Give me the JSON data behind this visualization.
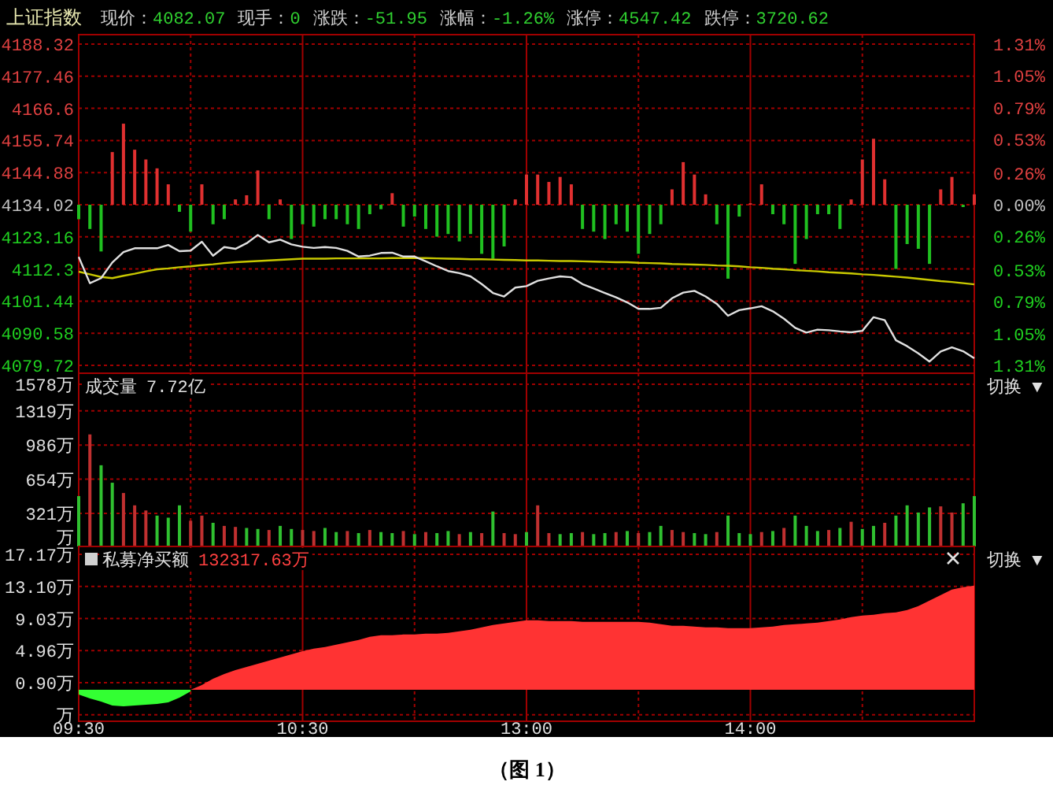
{
  "chart_data": [
    {
      "type": "line",
      "title": "上证指数",
      "annotations": [
        "现价：4082.07",
        "现手：0",
        "涨跌：-51.95",
        "涨幅：-1.26%",
        "涨停：4547.42",
        "跌停：3720.62"
      ],
      "categories": [
        null,
        null,
        null,
        null,
        null,
        null,
        null,
        null,
        null,
        null,
        null,
        null,
        null,
        null,
        null,
        null,
        null,
        null,
        null,
        null,
        null,
        null,
        null,
        null,
        null,
        null,
        null,
        null,
        null,
        null,
        null,
        null,
        null,
        null,
        null,
        null,
        null,
        null,
        null,
        null,
        null,
        null,
        null,
        null,
        null,
        null,
        null,
        null,
        null,
        null,
        null,
        null,
        null,
        null,
        null,
        null,
        null,
        null,
        null,
        null,
        null,
        null,
        null,
        null,
        null,
        null,
        null,
        null,
        null,
        null,
        null,
        null,
        null,
        null,
        null,
        null,
        null,
        null,
        null,
        null,
        null
      ],
      "ylim": [
        4079.72,
        4188.32
      ],
      "yticks": [
        4079.72,
        4090.58,
        4101.44,
        4112.3,
        4123.16,
        4134.02,
        4144.88,
        4155.74,
        4166.6,
        4177.46,
        4188.32
      ],
      "y2lim": [
        -1.31,
        1.31
      ],
      "y2ticks": [
        {
          "value": -1.31,
          "label": "1.31%"
        },
        {
          "value": -1.05,
          "label": "1.05%"
        },
        {
          "value": -0.79,
          "label": "0.79%"
        },
        {
          "value": -0.53,
          "label": "0.53%"
        },
        {
          "value": -0.26,
          "label": "0.26%"
        },
        {
          "value": 0,
          "label": "0.00%"
        },
        {
          "value": 0.26,
          "label": "0.26%"
        },
        {
          "value": 0.53,
          "label": "0.53%"
        },
        {
          "value": 0.79,
          "label": "0.79%"
        },
        {
          "value": 1.05,
          "label": "1.05%"
        },
        {
          "value": 1.31,
          "label": "1.31%"
        }
      ],
      "grid": true,
      "tick_labels": "y",
      "series": [
        {
          "type": "bar",
          "values": [
            -4.9,
            -8.2,
            -15.8,
            17.8,
            27.4,
            18.6,
            15.3,
            12.3,
            6.9,
            -2.4,
            -9.1,
            6.9,
            -6.6,
            -4.9,
            1.8,
            3.2,
            11.6,
            -4.9,
            1.8,
            -11.6,
            -6.6,
            -7.4,
            -4.9,
            -4.9,
            -6.6,
            -8.2,
            -3.2,
            -1.5,
            3.9,
            -7.4,
            -4.0,
            -8.2,
            -10.8,
            -9.9,
            -12.4,
            -9.9,
            -16.6,
            -18.3,
            -14.1,
            1.8,
            10.2,
            10.2,
            7.7,
            9.4,
            6.9,
            -8.2,
            -9.1,
            -11.6,
            -6.6,
            -9.1,
            -16.6,
            -9.9,
            -6.6,
            5.2,
            14.4,
            10.2,
            3.5,
            -6.6,
            -25.0,
            -4.0,
            0.5,
            6.9,
            -3.2,
            -6.6,
            -20.0,
            -11.6,
            -3.2,
            -3.2,
            -8.2,
            1.8,
            15.3,
            22.3,
            8.6,
            -21.7,
            -13.3,
            -14.9,
            -20.0,
            5.2,
            9.4,
            -0.8,
            3.5
          ],
          "base": [
            4134.02,
            4134.02,
            4134.02,
            4134.02,
            4134.02,
            4134.02,
            4134.02,
            4134.02,
            4134.02,
            4134.02,
            4134.02,
            4134.02,
            4134.02,
            4134.02,
            4134.02,
            4134.02,
            4134.02,
            4134.02,
            4134.02,
            4134.02,
            4134.02,
            4134.02,
            4134.02,
            4134.02,
            4134.02,
            4134.02,
            4134.02,
            4134.02,
            4134.02,
            4134.02,
            4134.02,
            4134.02,
            4134.02,
            4134.02,
            4134.02,
            4134.02,
            4134.02,
            4134.02,
            4134.02,
            4134.02,
            4134.02,
            4134.02,
            4134.02,
            4134.02,
            4134.02,
            4134.02,
            4134.02,
            4134.02,
            4134.02,
            4134.02,
            4134.02,
            4134.02,
            4134.02,
            4134.02,
            4134.02,
            4134.02,
            4134.02,
            4134.02,
            4134.02,
            4134.02,
            4134.02,
            4134.02,
            4134.02,
            4134.02,
            4134.02,
            4134.02,
            4134.02,
            4134.02,
            4134.02,
            4134.02,
            4134.02,
            4134.02,
            4134.02,
            4134.02,
            4134.02,
            4134.02,
            4134.02,
            4134.02,
            4134.02,
            4134.02,
            4134.02
          ],
          "colors": [
            "#20c020",
            "#20c020",
            "#20c020",
            "#e03030",
            "#e03030",
            "#e03030",
            "#e03030",
            "#e03030",
            "#e03030",
            "#20c020",
            "#20c020",
            "#e03030",
            "#20c020",
            "#20c020",
            "#e03030",
            "#e03030",
            "#e03030",
            "#20c020",
            "#e03030",
            "#20c020",
            "#20c020",
            "#20c020",
            "#20c020",
            "#20c020",
            "#20c020",
            "#20c020",
            "#20c020",
            "#20c020",
            "#e03030",
            "#20c020",
            "#20c020",
            "#20c020",
            "#20c020",
            "#20c020",
            "#20c020",
            "#20c020",
            "#20c020",
            "#20c020",
            "#20c020",
            "#e03030",
            "#e03030",
            "#e03030",
            "#e03030",
            "#e03030",
            "#e03030",
            "#20c020",
            "#20c020",
            "#20c020",
            "#20c020",
            "#20c020",
            "#20c020",
            "#20c020",
            "#20c020",
            "#e03030",
            "#e03030",
            "#e03030",
            "#e03030",
            "#20c020",
            "#20c020",
            "#20c020",
            "#e03030",
            "#e03030",
            "#20c020",
            "#20c020",
            "#20c020",
            "#20c020",
            "#20c020",
            "#20c020",
            "#20c020",
            "#e03030",
            "#e03030",
            "#e03030",
            "#e03030",
            "#20c020",
            "#20c020",
            "#20c020",
            "#20c020",
            "#e03030",
            "#e03030",
            "#20c020",
            "#e03030"
          ]
        },
        {
          "color": "#c8c800",
          "values": [
            4111.4,
            4110.5,
            4109.6,
            4109.2,
            4110.0,
            4110.7,
            4111.5,
            4112.2,
            4112.5,
            4112.9,
            4113.2,
            4113.6,
            4113.9,
            4114.3,
            4114.6,
            4114.8,
            4115.0,
            4115.2,
            4115.4,
            4115.6,
            4115.8,
            4115.8,
            4115.8,
            4115.9,
            4115.9,
            4115.9,
            4115.9,
            4115.9,
            4116.0,
            4116.0,
            4116.0,
            4116.0,
            4115.9,
            4115.8,
            4115.7,
            4115.6,
            4115.6,
            4115.5,
            4115.4,
            4115.3,
            4115.2,
            4115.2,
            4115.1,
            4115.0,
            4115.0,
            4114.9,
            4114.8,
            4114.7,
            4114.6,
            4114.6,
            4114.4,
            4114.3,
            4114.2,
            4114.0,
            4113.9,
            4113.8,
            4113.7,
            4113.5,
            4113.4,
            4113.2,
            4112.9,
            4112.7,
            4112.4,
            4112.2,
            4111.9,
            4111.7,
            4111.5,
            4111.2,
            4111.0,
            4110.8,
            4110.5,
            4110.3,
            4110.0,
            4109.7,
            4109.4,
            4109.0,
            4108.6,
            4108.2,
            4107.9,
            4107.5,
            4107.1
          ]
        },
        {
          "color": "#e0e0e0",
          "values": [
            4116.4,
            4107.5,
            4109.2,
            4114.5,
            4118.0,
            4119.3,
            4119.3,
            4119.3,
            4120.4,
            4118.3,
            4118.5,
            4121.5,
            4116.8,
            4119.7,
            4119.1,
            4121.0,
            4123.8,
            4121.3,
            4122.2,
            4120.6,
            4119.8,
            4119.4,
            4119.7,
            4119.4,
            4118.4,
            4116.5,
            4116.8,
            4117.7,
            4117.8,
            4116.5,
            4116.5,
            4114.9,
            4113.2,
            4111.6,
            4110.9,
            4109.8,
            4107.2,
            4104.2,
            4103.0,
            4106.0,
            4106.5,
            4108.3,
            4109.1,
            4109.8,
            4109.5,
            4107.2,
            4105.7,
            4104.2,
            4102.7,
            4101.0,
            4098.8,
            4098.8,
            4099.2,
            4102.4,
            4104.3,
            4104.9,
            4103.0,
            4100.5,
            4096.5,
            4098.4,
            4099.0,
            4099.7,
            4098.0,
            4095.5,
            4092.4,
            4090.8,
            4091.8,
            4091.6,
            4091.2,
            4090.9,
            4091.4,
            4096.0,
            4095.0,
            4088.2,
            4086.2,
            4083.8,
            4081.0,
            4084.4,
            4085.8,
            4084.5,
            4082.1
          ]
        }
      ]
    },
    {
      "type": "bar",
      "title": "成交量",
      "subtitle": "7.72亿",
      "annotations": [
        "切换 ▼"
      ],
      "categories": [
        null,
        null,
        null,
        null,
        null,
        null,
        null,
        null,
        null,
        null,
        null,
        null,
        null,
        null,
        null,
        null,
        null,
        null,
        null,
        null,
        null,
        null,
        null,
        null,
        null,
        null,
        null,
        null,
        null,
        null,
        null,
        null,
        null,
        null,
        null,
        null,
        null,
        null,
        null,
        null,
        null,
        null,
        null,
        null,
        null,
        null,
        null,
        null,
        null,
        null,
        null,
        null,
        null,
        null,
        null,
        null,
        null,
        null,
        null,
        null,
        null,
        null,
        null,
        null,
        null,
        null,
        null,
        null,
        null,
        null,
        null,
        null,
        null,
        null,
        null,
        null,
        null,
        null,
        null,
        null,
        null
      ],
      "ylim": [
        0,
        1578
      ],
      "yticks": [
        {
          "value": 0,
          "label": "万"
        },
        {
          "value": 321,
          "label": "321万"
        },
        {
          "value": 654,
          "label": "654万"
        },
        {
          "value": 986,
          "label": "986万"
        },
        {
          "value": 1319,
          "label": "1319万"
        },
        {
          "value": 1578,
          "label": "1578万"
        }
      ],
      "grid": true,
      "tick_labels": "y",
      "values": [
        490,
        1090,
        790,
        620,
        520,
        400,
        350,
        300,
        280,
        400,
        250,
        300,
        230,
        200,
        190,
        180,
        170,
        160,
        200,
        170,
        160,
        150,
        180,
        140,
        150,
        130,
        160,
        140,
        130,
        150,
        120,
        140,
        130,
        150,
        120,
        140,
        130,
        340,
        130,
        120,
        140,
        400,
        130,
        120,
        130,
        140,
        120,
        130,
        140,
        150,
        130,
        140,
        200,
        160,
        140,
        130,
        120,
        140,
        300,
        130,
        120,
        140,
        150,
        180,
        300,
        200,
        150,
        160,
        180,
        240,
        170,
        200,
        230,
        300,
        400,
        330,
        380,
        390,
        330,
        420,
        490
      ],
      "colors": [
        "#30c030",
        "#c03030",
        "#30c030",
        "#30c030",
        "#c03030",
        "#c03030",
        "#c03030",
        "#30c030",
        "#30c030",
        "#30c030",
        "#c03030",
        "#c03030",
        "#30c030",
        "#c03030",
        "#c03030",
        "#30c030",
        "#30c030",
        "#c03030",
        "#30c030",
        "#30c030",
        "#c03030",
        "#c03030",
        "#30c030",
        "#30c030",
        "#c03030",
        "#30c030",
        "#c03030",
        "#30c030",
        "#30c030",
        "#c03030",
        "#30c030",
        "#c03030",
        "#30c030",
        "#30c030",
        "#c03030",
        "#30c030",
        "#c03030",
        "#30c030",
        "#c03030",
        "#c03030",
        "#30c030",
        "#c03030",
        "#c03030",
        "#30c030",
        "#30c030",
        "#c03030",
        "#30c030",
        "#30c030",
        "#c03030",
        "#30c030",
        "#c03030",
        "#30c030",
        "#30c030",
        "#c03030",
        "#c03030",
        "#30c030",
        "#30c030",
        "#c03030",
        "#30c030",
        "#30c030",
        "#30c030",
        "#c03030",
        "#30c030",
        "#c03030",
        "#30c030",
        "#30c030",
        "#30c030",
        "#c03030",
        "#30c030",
        "#c03030",
        "#30c030",
        "#30c030",
        "#c03030",
        "#30c030",
        "#30c030",
        "#30c030",
        "#30c030",
        "#c03030",
        "#c03030",
        "#30c030",
        "#30c030"
      ]
    },
    {
      "type": "area",
      "title": "私募净买额",
      "subtitle": "132317.63万",
      "annotations": [
        "切换 ▼",
        "（图 1）"
      ],
      "categories": [
        "09:30",
        null,
        null,
        null,
        null,
        null,
        null,
        null,
        null,
        null,
        null,
        null,
        null,
        null,
        null,
        null,
        null,
        null,
        null,
        null,
        "10:30",
        null,
        null,
        null,
        null,
        null,
        null,
        null,
        null,
        null,
        null,
        null,
        null,
        null,
        null,
        null,
        null,
        null,
        null,
        null,
        "13:00",
        null,
        null,
        null,
        null,
        null,
        null,
        null,
        null,
        null,
        null,
        null,
        null,
        null,
        null,
        null,
        null,
        null,
        null,
        null,
        "14:00",
        null,
        null,
        null,
        null,
        null,
        null,
        null,
        null,
        null,
        null,
        null,
        null,
        null,
        null,
        null,
        null,
        null,
        null,
        null,
        null
      ],
      "ylim": [
        -4,
        17.17
      ],
      "yticks": [
        {
          "value": -3.17,
          "label": "万"
        },
        {
          "value": 0.9,
          "label": "0.90万"
        },
        {
          "value": 4.96,
          "label": "4.96万"
        },
        {
          "value": 9.03,
          "label": "9.03万"
        },
        {
          "value": 13.1,
          "label": "13.10万"
        },
        {
          "value": 17.17,
          "label": "17.17万"
        }
      ],
      "grid": true,
      "series": [
        {
          "color": "#33ff33",
          "values": [
            -0.6,
            -1.1,
            -1.5,
            -2.0,
            -2.1,
            -2.0,
            -1.9,
            -1.8,
            -1.6,
            -1.0,
            -0.2,
            null,
            null,
            null,
            null,
            null,
            null,
            null,
            null,
            null,
            null,
            null,
            null,
            null,
            null,
            null,
            null,
            null,
            null,
            null,
            null,
            null,
            null,
            null,
            null,
            null,
            null,
            null,
            null,
            null,
            null,
            null,
            null,
            null,
            null,
            null,
            null,
            null,
            null,
            null,
            null,
            null,
            null,
            null,
            null,
            null,
            null,
            null,
            null,
            null,
            null,
            null,
            null,
            null,
            null,
            null,
            null,
            null,
            null,
            null,
            null,
            null,
            null,
            null,
            null,
            null,
            null,
            null,
            null,
            null,
            null
          ]
        },
        {
          "color": "#ff3333",
          "values": [
            null,
            null,
            null,
            null,
            null,
            null,
            null,
            null,
            null,
            null,
            0,
            0.6,
            1.4,
            2.0,
            2.5,
            2.9,
            3.3,
            3.7,
            4.1,
            4.5,
            4.9,
            5.2,
            5.4,
            5.7,
            6.0,
            6.3,
            6.7,
            6.9,
            6.9,
            7.0,
            7.0,
            7.1,
            7.1,
            7.2,
            7.4,
            7.6,
            7.9,
            8.2,
            8.4,
            8.6,
            8.8,
            8.8,
            8.7,
            8.7,
            8.7,
            8.6,
            8.6,
            8.6,
            8.6,
            8.6,
            8.6,
            8.5,
            8.3,
            8.1,
            8.1,
            8.0,
            7.9,
            7.9,
            7.8,
            7.8,
            7.8,
            7.9,
            8.0,
            8.2,
            8.3,
            8.4,
            8.5,
            8.7,
            8.9,
            9.2,
            9.4,
            9.5,
            9.7,
            9.8,
            10.1,
            10.6,
            11.3,
            12.0,
            12.7,
            13.0,
            13.2
          ]
        }
      ]
    }
  ]
}
